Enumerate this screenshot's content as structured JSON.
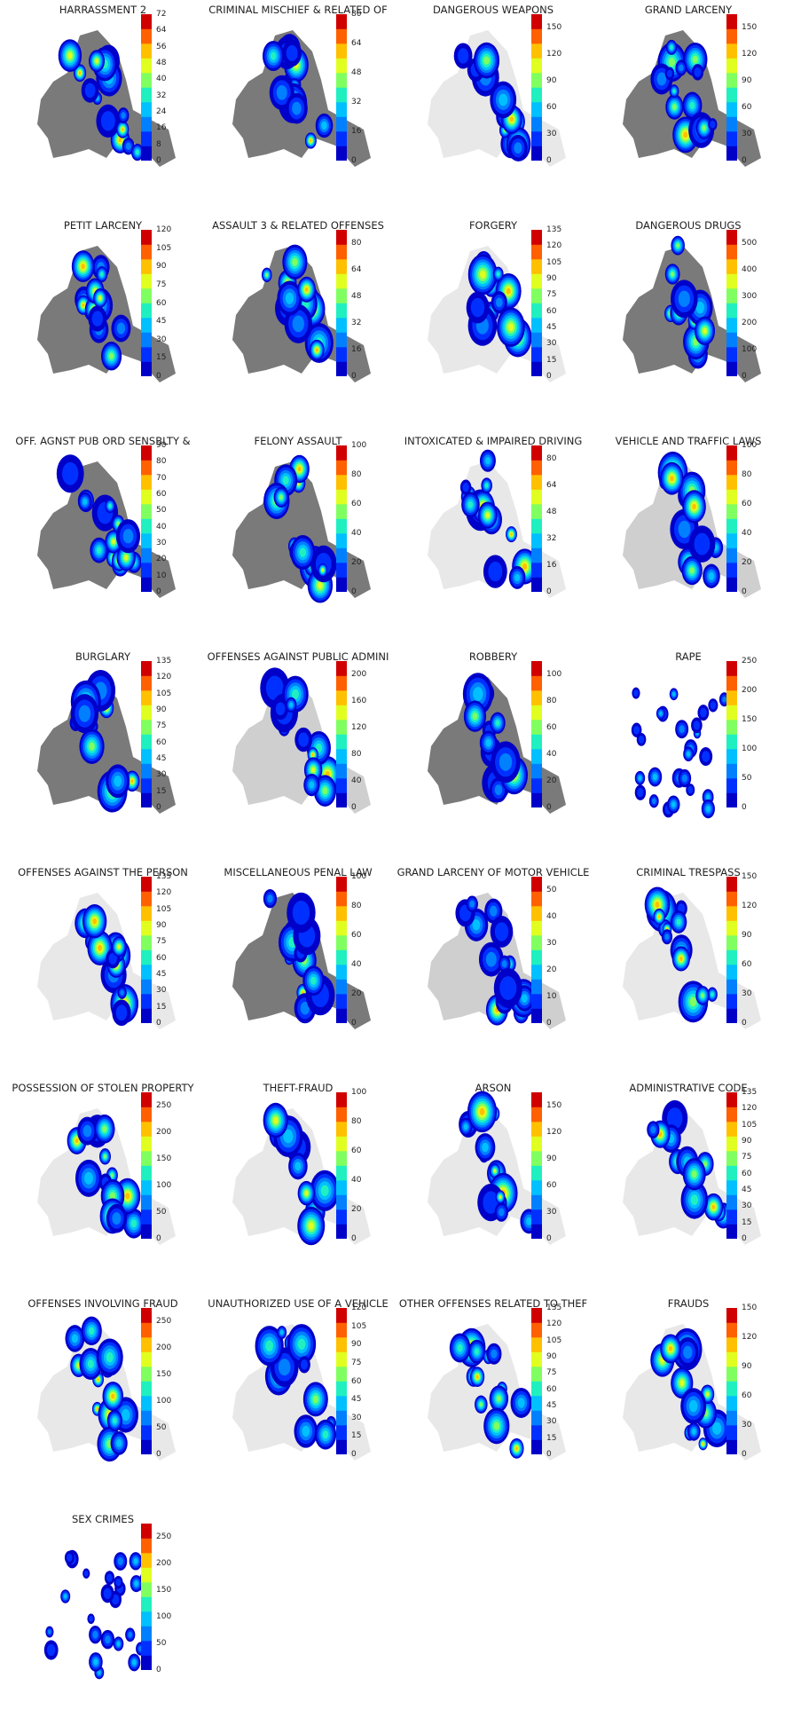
{
  "chart_data": [
    {
      "type": "heatmap",
      "title": "HARRASSMENT 2",
      "colorbar_ticks": [
        0,
        8,
        16,
        24,
        32,
        40,
        48,
        56,
        64,
        72
      ],
      "vmax": 72,
      "background_density": "heavy"
    },
    {
      "type": "heatmap",
      "title": "CRIMINAL MISCHIEF & RELATED OF",
      "colorbar_ticks": [
        0,
        16,
        32,
        48,
        64,
        80
      ],
      "vmax": 80,
      "background_density": "heavy"
    },
    {
      "type": "heatmap",
      "title": "DANGEROUS WEAPONS",
      "colorbar_ticks": [
        0,
        30,
        60,
        90,
        120,
        150
      ],
      "vmax": 165,
      "background_density": "light"
    },
    {
      "type": "heatmap",
      "title": "GRAND LARCENY",
      "colorbar_ticks": [
        0,
        30,
        60,
        90,
        120,
        150
      ],
      "vmax": 165,
      "background_density": "heavy"
    },
    {
      "type": "heatmap",
      "title": "PETIT LARCENY",
      "colorbar_ticks": [
        0,
        15,
        30,
        45,
        60,
        75,
        90,
        105,
        120
      ],
      "vmax": 120,
      "background_density": "heavy"
    },
    {
      "type": "heatmap",
      "title": "ASSAULT 3 & RELATED OFFENSES",
      "colorbar_ticks": [
        0,
        16,
        32,
        48,
        64,
        80
      ],
      "vmax": 88,
      "background_density": "heavy"
    },
    {
      "type": "heatmap",
      "title": "FORGERY",
      "colorbar_ticks": [
        0,
        15,
        30,
        45,
        60,
        75,
        90,
        105,
        120,
        135
      ],
      "vmax": 135,
      "background_density": "light"
    },
    {
      "type": "heatmap",
      "title": "DANGEROUS DRUGS",
      "colorbar_ticks": [
        0,
        100,
        200,
        300,
        400,
        500
      ],
      "vmax": 550,
      "background_density": "heavy"
    },
    {
      "type": "heatmap",
      "title": "OFF. AGNST PUB ORD SENSBLTY &",
      "colorbar_ticks": [
        0,
        10,
        20,
        30,
        40,
        50,
        60,
        70,
        80,
        90
      ],
      "vmax": 90,
      "background_density": "heavy"
    },
    {
      "type": "heatmap",
      "title": "FELONY ASSAULT",
      "colorbar_ticks": [
        0,
        20,
        40,
        60,
        80,
        100
      ],
      "vmax": 100,
      "background_density": "heavy"
    },
    {
      "type": "heatmap",
      "title": "INTOXICATED & IMPAIRED DRIVING",
      "colorbar_ticks": [
        0,
        16,
        32,
        48,
        64,
        80
      ],
      "vmax": 88,
      "background_density": "light"
    },
    {
      "type": "heatmap",
      "title": "VEHICLE AND TRAFFIC LAWS",
      "colorbar_ticks": [
        0,
        20,
        40,
        60,
        80,
        100
      ],
      "vmax": 100,
      "background_density": "medium"
    },
    {
      "type": "heatmap",
      "title": "BURGLARY",
      "colorbar_ticks": [
        0,
        15,
        30,
        45,
        60,
        75,
        90,
        105,
        120,
        135
      ],
      "vmax": 135,
      "background_density": "heavy"
    },
    {
      "type": "heatmap",
      "title": "OFFENSES AGAINST PUBLIC ADMINI",
      "colorbar_ticks": [
        0,
        40,
        80,
        120,
        160,
        200
      ],
      "vmax": 220,
      "background_density": "medium"
    },
    {
      "type": "heatmap",
      "title": "ROBBERY",
      "colorbar_ticks": [
        0,
        20,
        40,
        60,
        80,
        100
      ],
      "vmax": 110,
      "background_density": "heavy"
    },
    {
      "type": "heatmap",
      "title": "RAPE",
      "colorbar_ticks": [
        0,
        50,
        100,
        150,
        200,
        250
      ],
      "vmax": 250,
      "background_density": "none"
    },
    {
      "type": "heatmap",
      "title": "OFFENSES AGAINST THE PERSON",
      "colorbar_ticks": [
        0,
        15,
        30,
        45,
        60,
        75,
        90,
        105,
        120,
        135
      ],
      "vmax": 135,
      "background_density": "light"
    },
    {
      "type": "heatmap",
      "title": "MISCELLANEOUS PENAL LAW",
      "colorbar_ticks": [
        0,
        20,
        40,
        60,
        80,
        100
      ],
      "vmax": 100,
      "background_density": "heavy"
    },
    {
      "type": "heatmap",
      "title": "GRAND LARCENY OF MOTOR VEHICLE",
      "colorbar_ticks": [
        0,
        10,
        20,
        30,
        40,
        50
      ],
      "vmax": 55,
      "background_density": "medium"
    },
    {
      "type": "heatmap",
      "title": "CRIMINAL TRESPASS",
      "colorbar_ticks": [
        0,
        30,
        60,
        90,
        120,
        150
      ],
      "vmax": 150,
      "background_density": "light"
    },
    {
      "type": "heatmap",
      "title": "POSSESSION OF STOLEN PROPERTY",
      "colorbar_ticks": [
        0,
        50,
        100,
        150,
        200,
        250
      ],
      "vmax": 275,
      "background_density": "light"
    },
    {
      "type": "heatmap",
      "title": "THEFT-FRAUD",
      "colorbar_ticks": [
        0,
        20,
        40,
        60,
        80,
        100
      ],
      "vmax": 100,
      "background_density": "light"
    },
    {
      "type": "heatmap",
      "title": "ARSON",
      "colorbar_ticks": [
        0,
        30,
        60,
        90,
        120,
        150
      ],
      "vmax": 165,
      "background_density": "light"
    },
    {
      "type": "heatmap",
      "title": "ADMINISTRATIVE CODE",
      "colorbar_ticks": [
        0,
        15,
        30,
        45,
        60,
        75,
        90,
        105,
        120,
        135
      ],
      "vmax": 135,
      "background_density": "light"
    },
    {
      "type": "heatmap",
      "title": "OFFENSES INVOLVING FRAUD",
      "colorbar_ticks": [
        0,
        50,
        100,
        150,
        200,
        250
      ],
      "vmax": 275,
      "background_density": "light"
    },
    {
      "type": "heatmap",
      "title": "UNAUTHORIZED USE OF A VEHICLE",
      "colorbar_ticks": [
        0,
        15,
        30,
        45,
        60,
        75,
        90,
        105,
        120
      ],
      "vmax": 120,
      "background_density": "light"
    },
    {
      "type": "heatmap",
      "title": "OTHER OFFENSES RELATED TO THEF",
      "colorbar_ticks": [
        0,
        15,
        30,
        45,
        60,
        75,
        90,
        105,
        120,
        135
      ],
      "vmax": 135,
      "background_density": "light"
    },
    {
      "type": "heatmap",
      "title": "FRAUDS",
      "colorbar_ticks": [
        0,
        30,
        60,
        90,
        120,
        150
      ],
      "vmax": 150,
      "background_density": "light"
    },
    {
      "type": "heatmap",
      "title": "SEX CRIMES",
      "colorbar_ticks": [
        0,
        50,
        100,
        150,
        200,
        250
      ],
      "vmax": 275,
      "background_density": "none"
    }
  ],
  "colormap": [
    "#0000c8",
    "#0030ff",
    "#0080ff",
    "#00c0ff",
    "#20f0c0",
    "#80ff60",
    "#e0ff20",
    "#ffc000",
    "#ff6000",
    "#d00000"
  ],
  "background_color": "#7a7a7a"
}
